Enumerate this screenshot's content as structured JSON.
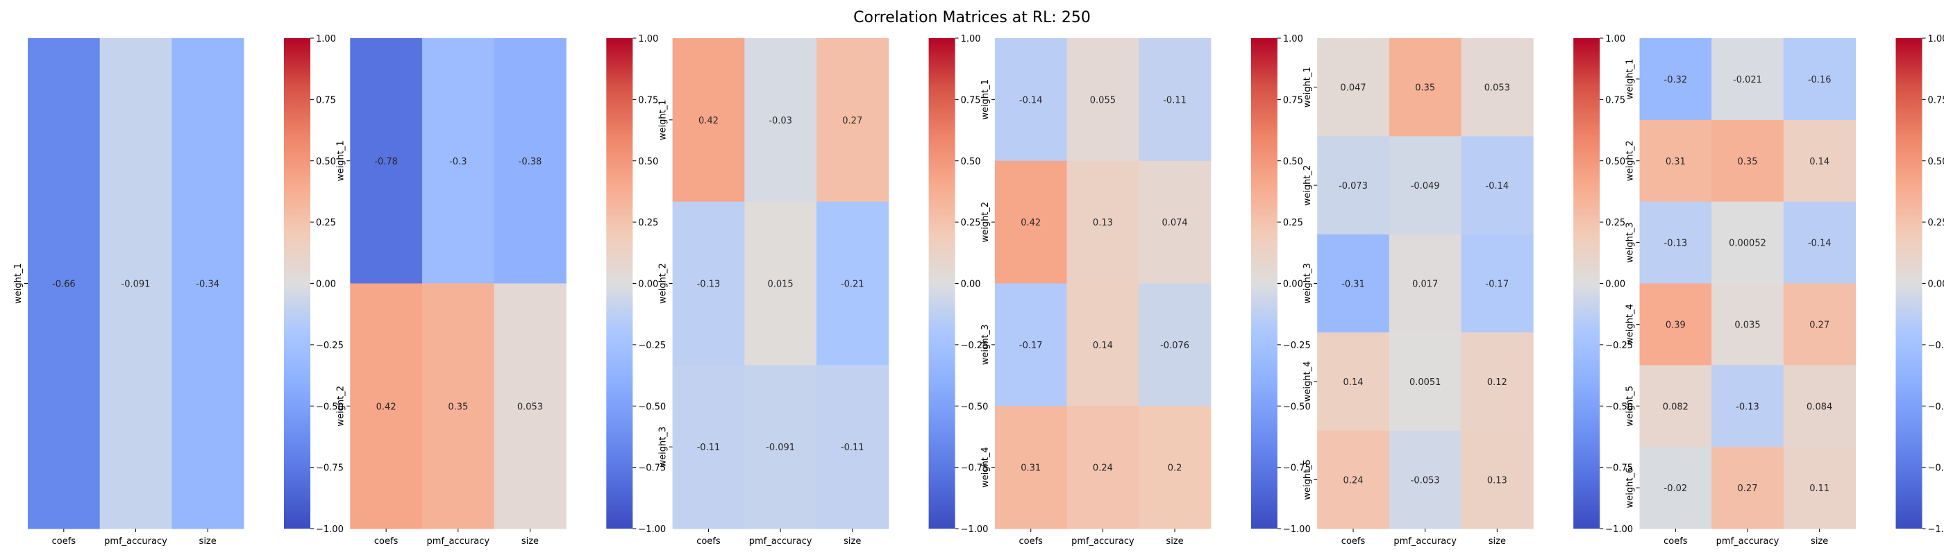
{
  "figure": {
    "title": "Correlation Matrices at RL: 250"
  },
  "colorbar": {
    "min": -1.0,
    "max": 1.0,
    "ticks": [
      "1.00",
      "0.75",
      "0.50",
      "0.25",
      "0.00",
      "−0.25",
      "−0.50",
      "−0.75",
      "−1.00"
    ],
    "colormap": "coolwarm",
    "low_color": "#3b4cc0",
    "mid_color": "#dddddd",
    "high_color": "#b40426"
  },
  "chart_data": [
    {
      "type": "heatmap",
      "columns": [
        "coefs",
        "pmf_accuracy",
        "size"
      ],
      "rows": [
        "weight_1"
      ],
      "values": [
        [
          -0.66,
          -0.091,
          -0.34
        ]
      ],
      "labels": [
        [
          "-0.66",
          "-0.091",
          "-0.34"
        ]
      ],
      "vmin": -1,
      "vmax": 1
    },
    {
      "type": "heatmap",
      "columns": [
        "coefs",
        "pmf_accuracy",
        "size"
      ],
      "rows": [
        "weight_1",
        "weight_2"
      ],
      "values": [
        [
          -0.78,
          -0.3,
          -0.38
        ],
        [
          0.42,
          0.35,
          0.053
        ]
      ],
      "labels": [
        [
          "-0.78",
          "-0.3",
          "-0.38"
        ],
        [
          "0.42",
          "0.35",
          "0.053"
        ]
      ],
      "vmin": -1,
      "vmax": 1
    },
    {
      "type": "heatmap",
      "columns": [
        "coefs",
        "pmf_accuracy",
        "size"
      ],
      "rows": [
        "weight_1",
        "weight_2",
        "weight_3"
      ],
      "values": [
        [
          0.42,
          -0.03,
          0.27
        ],
        [
          -0.13,
          0.015,
          -0.21
        ],
        [
          -0.11,
          -0.091,
          -0.11
        ]
      ],
      "labels": [
        [
          "0.42",
          "-0.03",
          "0.27"
        ],
        [
          "-0.13",
          "0.015",
          "-0.21"
        ],
        [
          "-0.11",
          "-0.091",
          "-0.11"
        ]
      ],
      "vmin": -1,
      "vmax": 1
    },
    {
      "type": "heatmap",
      "columns": [
        "coefs",
        "pmf_accuracy",
        "size"
      ],
      "rows": [
        "weight_1",
        "weight_2",
        "weight_3",
        "weight_4"
      ],
      "values": [
        [
          -0.14,
          0.055,
          -0.11
        ],
        [
          0.42,
          0.13,
          0.074
        ],
        [
          -0.17,
          0.14,
          -0.076
        ],
        [
          0.31,
          0.24,
          0.2
        ]
      ],
      "labels": [
        [
          "-0.14",
          "0.055",
          "-0.11"
        ],
        [
          "0.42",
          "0.13",
          "0.074"
        ],
        [
          "-0.17",
          "0.14",
          "-0.076"
        ],
        [
          "0.31",
          "0.24",
          "0.2"
        ]
      ],
      "vmin": -1,
      "vmax": 1
    },
    {
      "type": "heatmap",
      "columns": [
        "coefs",
        "pmf_accuracy",
        "size"
      ],
      "rows": [
        "weight_1",
        "weight_2",
        "weight_3",
        "weight_4",
        "weight_5"
      ],
      "values": [
        [
          0.047,
          0.35,
          0.053
        ],
        [
          -0.073,
          -0.049,
          -0.14
        ],
        [
          -0.31,
          0.017,
          -0.17
        ],
        [
          0.14,
          0.0051,
          0.12
        ],
        [
          0.24,
          -0.053,
          0.13
        ]
      ],
      "labels": [
        [
          "0.047",
          "0.35",
          "0.053"
        ],
        [
          "-0.073",
          "-0.049",
          "-0.14"
        ],
        [
          "-0.31",
          "0.017",
          "-0.17"
        ],
        [
          "0.14",
          "0.0051",
          "0.12"
        ],
        [
          "0.24",
          "-0.053",
          "0.13"
        ]
      ],
      "vmin": -1,
      "vmax": 1
    },
    {
      "type": "heatmap",
      "columns": [
        "coefs",
        "pmf_accuracy",
        "size"
      ],
      "rows": [
        "weight_1",
        "weight_2",
        "weight_3",
        "weight_4",
        "weight_5",
        "weight_6"
      ],
      "values": [
        [
          -0.32,
          -0.021,
          -0.16
        ],
        [
          0.31,
          0.35,
          0.14
        ],
        [
          -0.13,
          0.00052,
          -0.14
        ],
        [
          0.39,
          0.035,
          0.27
        ],
        [
          0.082,
          -0.13,
          0.084
        ],
        [
          -0.02,
          0.27,
          0.11
        ]
      ],
      "labels": [
        [
          "-0.32",
          "-0.021",
          "-0.16"
        ],
        [
          "0.31",
          "0.35",
          "0.14"
        ],
        [
          "-0.13",
          "0.00052",
          "-0.14"
        ],
        [
          "0.39",
          "0.035",
          "0.27"
        ],
        [
          "0.082",
          "-0.13",
          "0.084"
        ],
        [
          "-0.02",
          "0.27",
          "0.11"
        ]
      ],
      "vmin": -1,
      "vmax": 1
    }
  ]
}
